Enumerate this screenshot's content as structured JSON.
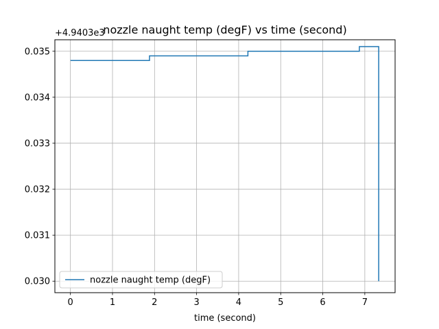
{
  "chart_data": {
    "type": "line",
    "title": "nozzle naught temp (degF) vs time (second)",
    "xlabel": "time (second)",
    "ylabel": "",
    "offset_text": "+4.9403e3",
    "xlim": [
      -0.37,
      7.72
    ],
    "ylim": [
      0.02975,
      0.03525
    ],
    "x_ticks": [
      0,
      1,
      2,
      3,
      4,
      5,
      6,
      7
    ],
    "x_tick_labels": [
      "0",
      "1",
      "2",
      "3",
      "4",
      "5",
      "6",
      "7"
    ],
    "y_ticks": [
      0.03,
      0.031,
      0.032,
      0.033,
      0.034,
      0.035
    ],
    "y_tick_labels": [
      "0.030",
      "0.031",
      "0.032",
      "0.033",
      "0.034",
      "0.035"
    ],
    "grid": true,
    "legend_position": "lower-left",
    "series": [
      {
        "name": "nozzle naught temp (degF)",
        "color": "#1f77b4",
        "drawstyle": "steps",
        "x": [
          0,
          1.88,
          1.88,
          4.22,
          4.22,
          6.87,
          6.87,
          7.33,
          7.33
        ],
        "y": [
          0.0348,
          0.0348,
          0.0349,
          0.0349,
          0.035,
          0.035,
          0.0351,
          0.0351,
          0.03
        ]
      }
    ]
  }
}
